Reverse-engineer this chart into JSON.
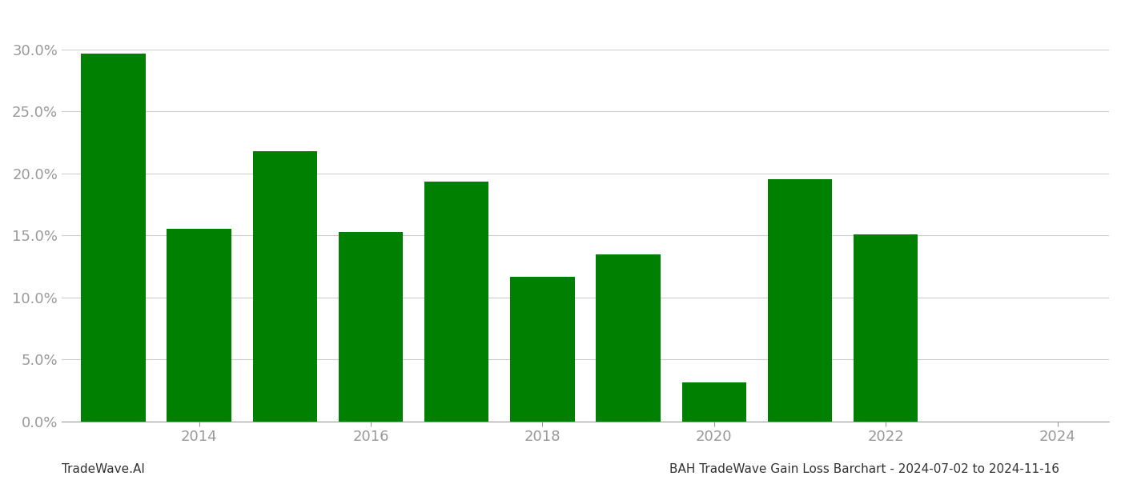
{
  "years": [
    2013,
    2014,
    2015,
    2016,
    2017,
    2018,
    2019,
    2020,
    2021,
    2022,
    2023
  ],
  "values": [
    0.2965,
    0.1555,
    0.2175,
    0.1525,
    0.1935,
    0.1165,
    0.1345,
    0.0315,
    0.1955,
    0.1505,
    0.0
  ],
  "bar_color": "#008000",
  "background_color": "#ffffff",
  "footer_left": "TradeWave.AI",
  "footer_right": "BAH TradeWave Gain Loss Barchart - 2024-07-02 to 2024-11-16",
  "ylim": [
    0,
    0.33
  ],
  "yticks": [
    0.0,
    0.05,
    0.1,
    0.15,
    0.2,
    0.25,
    0.3
  ],
  "xticks": [
    2014,
    2016,
    2018,
    2020,
    2022,
    2024
  ],
  "xlim": [
    2012.4,
    2024.6
  ],
  "grid_color": "#cccccc",
  "tick_color": "#999999",
  "tick_fontsize": 13,
  "footer_fontsize": 11,
  "bar_width": 0.75
}
